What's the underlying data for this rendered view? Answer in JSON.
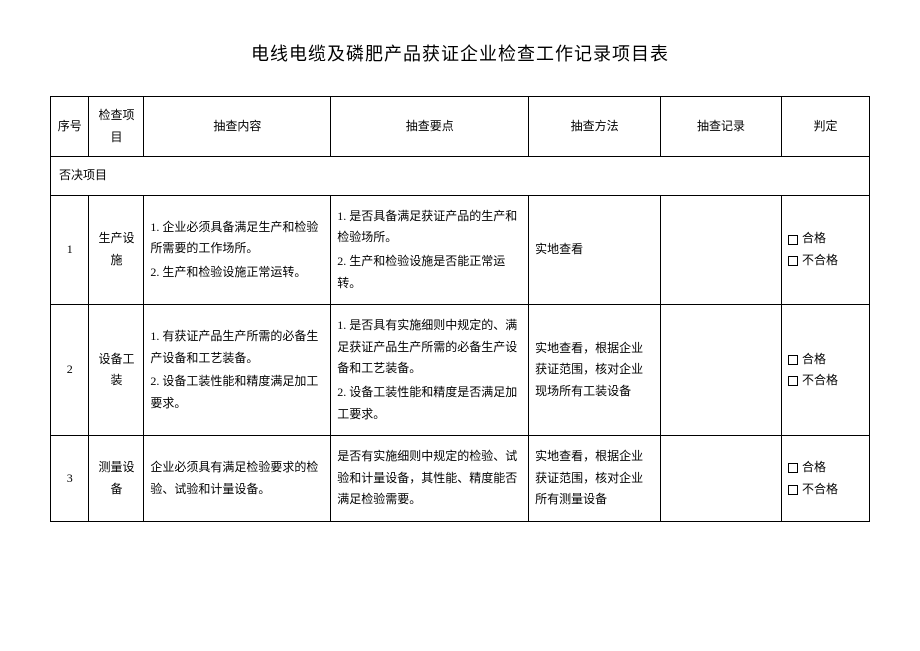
{
  "title": "电线电缆及磷肥产品获证企业检查工作记录项目表",
  "headers": {
    "seq": "序号",
    "item": "检查项目",
    "content": "抽查内容",
    "points": "抽查要点",
    "method": "抽查方法",
    "record": "抽查记录",
    "judge": "判定"
  },
  "section": "否决项目",
  "judge_pass": "合格",
  "judge_fail": "不合格",
  "rows": [
    {
      "seq": "1",
      "item": "生产设施",
      "content_1": "1. 企业必须具备满足生产和检验所需要的工作场所。",
      "content_2": "2. 生产和检验设施正常运转。",
      "points_1": "1. 是否具备满足获证产品的生产和检验场所。",
      "points_2": "2. 生产和检验设施是否能正常运转。",
      "method": "实地查看"
    },
    {
      "seq": "2",
      "item": "设备工装",
      "content_1": "1. 有获证产品生产所需的必备生产设备和工艺装备。",
      "content_2": "2. 设备工装性能和精度满足加工要求。",
      "points_1": "1. 是否具有实施细则中规定的、满足获证产品生产所需的必备生产设备和工艺装备。",
      "points_2": "2. 设备工装性能和精度是否满足加工要求。",
      "method": "实地查看，根据企业获证范围，核对企业现场所有工装设备"
    },
    {
      "seq": "3",
      "item": "测量设备",
      "content_1": "企业必须具有满足检验要求的检验、试验和计量设备。",
      "content_2": "",
      "points_1": "是否有实施细则中规定的检验、试验和计量设备，其性能、精度能否满足检验需要。",
      "points_2": "",
      "method": "实地查看，根据企业获证范围，核对企业所有测量设备"
    }
  ]
}
